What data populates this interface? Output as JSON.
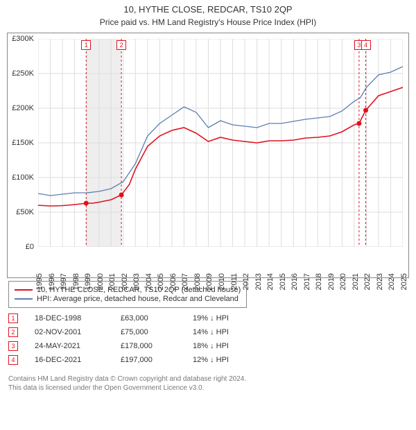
{
  "title": "10, HYTHE CLOSE, REDCAR, TS10 2QP",
  "subtitle": "Price paid vs. HM Land Registry's House Price Index (HPI)",
  "chart": {
    "type": "line",
    "background": "#ffffff",
    "grid_color": "#dddddd",
    "axis_color": "#888888",
    "x": {
      "min": 1995,
      "max": 2025,
      "ticks": [
        1995,
        1996,
        1997,
        1998,
        1999,
        2000,
        2001,
        2002,
        2003,
        2004,
        2005,
        2006,
        2007,
        2008,
        2009,
        2010,
        2011,
        2012,
        2013,
        2014,
        2015,
        2016,
        2017,
        2018,
        2019,
        2020,
        2021,
        2022,
        2023,
        2024,
        2025
      ]
    },
    "y": {
      "min": 0,
      "max": 300000,
      "ticks": [
        0,
        50000,
        100000,
        150000,
        200000,
        250000,
        300000
      ],
      "prefix": "£",
      "suffix": "K",
      "divisor": 1000
    },
    "shade_band": {
      "from": 1998.95,
      "to": 2001.85,
      "color": "#eeeeee"
    },
    "series": [
      {
        "id": "price_paid",
        "label": "10, HYTHE CLOSE, REDCAR, TS10 2QP (detached house)",
        "color": "#e1101e",
        "width": 1.6,
        "data": [
          [
            1995,
            60000
          ],
          [
            1996,
            59000
          ],
          [
            1997,
            59500
          ],
          [
            1998,
            61000
          ],
          [
            1998.95,
            63000
          ],
          [
            1999.5,
            63000
          ],
          [
            2000,
            64500
          ],
          [
            2001,
            68000
          ],
          [
            2001.85,
            75000
          ],
          [
            2002.5,
            90000
          ],
          [
            2003,
            112000
          ],
          [
            2004,
            145000
          ],
          [
            2005,
            160000
          ],
          [
            2006,
            168000
          ],
          [
            2007,
            172000
          ],
          [
            2008,
            164000
          ],
          [
            2009,
            152000
          ],
          [
            2010,
            158000
          ],
          [
            2011,
            154000
          ],
          [
            2012,
            152000
          ],
          [
            2013,
            150000
          ],
          [
            2014,
            153000
          ],
          [
            2015,
            153000
          ],
          [
            2016,
            154000
          ],
          [
            2017,
            157000
          ],
          [
            2018,
            158000
          ],
          [
            2019,
            160000
          ],
          [
            2020,
            166000
          ],
          [
            2021,
            176000
          ],
          [
            2021.4,
            178000
          ],
          [
            2021.95,
            197000
          ],
          [
            2022.5,
            208000
          ],
          [
            2023,
            218000
          ],
          [
            2024,
            224000
          ],
          [
            2025,
            230000
          ]
        ]
      },
      {
        "id": "hpi",
        "label": "HPI: Average price, detached house, Redcar and Cleveland",
        "color": "#5b7fb0",
        "width": 1.3,
        "data": [
          [
            1995,
            77000
          ],
          [
            1996,
            74000
          ],
          [
            1997,
            76000
          ],
          [
            1998,
            78000
          ],
          [
            1999,
            78000
          ],
          [
            2000,
            80000
          ],
          [
            2001,
            84000
          ],
          [
            2002,
            94000
          ],
          [
            2003,
            120000
          ],
          [
            2004,
            160000
          ],
          [
            2005,
            178000
          ],
          [
            2006,
            190000
          ],
          [
            2007,
            202000
          ],
          [
            2008,
            194000
          ],
          [
            2009,
            172000
          ],
          [
            2010,
            182000
          ],
          [
            2011,
            176000
          ],
          [
            2012,
            174000
          ],
          [
            2013,
            172000
          ],
          [
            2014,
            178000
          ],
          [
            2015,
            178000
          ],
          [
            2016,
            181000
          ],
          [
            2017,
            184000
          ],
          [
            2018,
            186000
          ],
          [
            2019,
            188000
          ],
          [
            2020,
            196000
          ],
          [
            2021,
            210000
          ],
          [
            2021.5,
            215000
          ],
          [
            2022,
            230000
          ],
          [
            2023,
            248000
          ],
          [
            2024,
            252000
          ],
          [
            2025,
            260000
          ]
        ]
      }
    ],
    "markers": [
      {
        "n": 1,
        "x": 1998.95,
        "y": 63000,
        "color": "#e1101e"
      },
      {
        "n": 2,
        "x": 2001.85,
        "y": 75000,
        "color": "#e1101e"
      },
      {
        "n": 3,
        "x": 2021.4,
        "y": 178000,
        "color": "#e1101e"
      },
      {
        "n": 4,
        "x": 2021.95,
        "y": 197000,
        "color": "#e1101e"
      }
    ]
  },
  "transactions": [
    {
      "n": 1,
      "date": "18-DEC-1998",
      "price": "£63,000",
      "diff": "19% ↓ HPI",
      "color": "#e1101e"
    },
    {
      "n": 2,
      "date": "02-NOV-2001",
      "price": "£75,000",
      "diff": "14% ↓ HPI",
      "color": "#e1101e"
    },
    {
      "n": 3,
      "date": "24-MAY-2021",
      "price": "£178,000",
      "diff": "18% ↓ HPI",
      "color": "#e1101e"
    },
    {
      "n": 4,
      "date": "16-DEC-2021",
      "price": "£197,000",
      "diff": "12% ↓ HPI",
      "color": "#e1101e"
    }
  ],
  "footer": {
    "line1": "Contains HM Land Registry data © Crown copyright and database right 2024.",
    "line2": "This data is licensed under the Open Government Licence v3.0."
  }
}
